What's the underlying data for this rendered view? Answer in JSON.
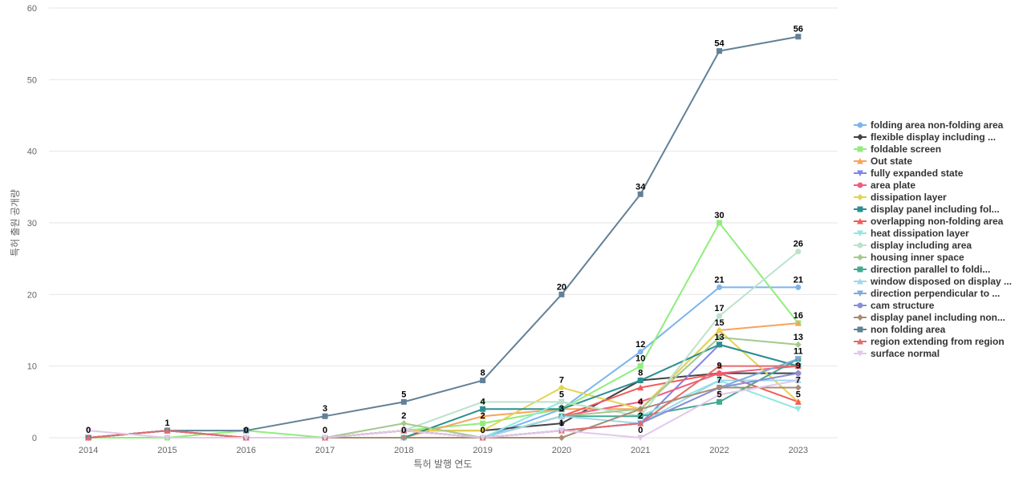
{
  "chart_data": {
    "type": "line",
    "title": "",
    "xlabel": "특허 발행 연도",
    "ylabel": "특허 출원 공개량",
    "x": [
      "2014",
      "2015",
      "2016",
      "2017",
      "2018",
      "2019",
      "2020",
      "2021",
      "2022",
      "2023"
    ],
    "y_ticks": [
      "0",
      "10",
      "20",
      "30",
      "40",
      "50",
      "60"
    ],
    "ylim": [
      0,
      60
    ],
    "grid": true,
    "legend_position": "right",
    "series": [
      {
        "name": "folding area non-folding area",
        "color": "#7cb5ec",
        "marker": "circle",
        "values": [
          0,
          1,
          0,
          0,
          1,
          0,
          4,
          12,
          21,
          21
        ]
      },
      {
        "name": "flexible display including ...",
        "color": "#434348",
        "marker": "diamond",
        "values": [
          0,
          1,
          0,
          0,
          1,
          1,
          2,
          8,
          9,
          9
        ]
      },
      {
        "name": "foldable screen",
        "color": "#90ed7d",
        "marker": "square",
        "values": [
          0,
          0,
          1,
          0,
          1,
          2,
          4,
          10,
          30,
          16
        ]
      },
      {
        "name": "Out state",
        "color": "#f7a35c",
        "marker": "triangle",
        "values": [
          0,
          1,
          0,
          0,
          0,
          3,
          4,
          4,
          15,
          16
        ]
      },
      {
        "name": "fully expanded state",
        "color": "#8085e9",
        "marker": "triangle-down",
        "values": [
          0,
          1,
          0,
          0,
          1,
          0,
          1,
          2,
          13,
          10
        ]
      },
      {
        "name": "area plate",
        "color": "#f15c80",
        "marker": "circle",
        "values": [
          0,
          1,
          0,
          0,
          1,
          0,
          3,
          5,
          9,
          10
        ]
      },
      {
        "name": "dissipation layer",
        "color": "#e4d354",
        "marker": "diamond",
        "values": [
          0,
          1,
          0,
          0,
          1,
          1,
          7,
          4,
          15,
          5
        ]
      },
      {
        "name": "display panel including fol...",
        "color": "#2b908f",
        "marker": "square",
        "values": [
          0,
          1,
          0,
          0,
          0,
          4,
          4,
          8,
          13,
          10
        ]
      },
      {
        "name": "overlapping non-folding area",
        "color": "#f45b5b",
        "marker": "triangle",
        "values": [
          0,
          1,
          0,
          0,
          1,
          0,
          3,
          7,
          9,
          5
        ]
      },
      {
        "name": "heat dissipation layer",
        "color": "#91e8e1",
        "marker": "triangle-down",
        "values": [
          0,
          1,
          0,
          0,
          0,
          0,
          5,
          3,
          8,
          4
        ]
      },
      {
        "name": "display including area",
        "color": "#bbe2cc",
        "marker": "circle",
        "values": [
          0,
          1,
          0,
          0,
          1,
          5,
          5,
          3,
          17,
          26
        ]
      },
      {
        "name": "housing inner space",
        "color": "#a4c98c",
        "marker": "diamond",
        "values": [
          0,
          1,
          0,
          0,
          2,
          0,
          3,
          4,
          14,
          13
        ]
      },
      {
        "name": "direction parallel to foldi...",
        "color": "#45a891",
        "marker": "square",
        "values": [
          0,
          1,
          0,
          0,
          0,
          0,
          3,
          3,
          5,
          11
        ]
      },
      {
        "name": "window disposed on display ...",
        "color": "#a0d8ec",
        "marker": "triangle",
        "values": [
          0,
          1,
          0,
          0,
          0,
          0,
          3,
          2,
          8,
          8
        ]
      },
      {
        "name": "direction perpendicular to ...",
        "color": "#7eaadd",
        "marker": "triangle-down",
        "values": [
          0,
          1,
          0,
          0,
          0,
          0,
          1,
          2,
          7,
          11
        ]
      },
      {
        "name": "cam structure",
        "color": "#8a8fd6",
        "marker": "circle",
        "values": [
          0,
          1,
          0,
          0,
          1,
          0,
          1,
          2,
          7,
          9
        ]
      },
      {
        "name": "display panel including non...",
        "color": "#a98c74",
        "marker": "diamond",
        "values": [
          0,
          1,
          0,
          0,
          0,
          0,
          0,
          4,
          7,
          7
        ]
      },
      {
        "name": "non folding area",
        "color": "#628197",
        "marker": "square",
        "values": [
          0,
          1,
          1,
          3,
          5,
          8,
          20,
          34,
          54,
          56
        ]
      },
      {
        "name": "region extending from region",
        "color": "#e36b6b",
        "marker": "triangle",
        "values": [
          0,
          1,
          0,
          0,
          1,
          0,
          1,
          2,
          10,
          10
        ]
      },
      {
        "name": "surface normal",
        "color": "#e2c8ea",
        "marker": "triangle-down",
        "values": [
          1,
          0,
          0,
          0,
          1,
          0,
          1,
          0,
          6,
          8
        ]
      }
    ],
    "data_labels": [
      {
        "x": "2014",
        "text": "0"
      },
      {
        "x": "2015",
        "text": "1"
      },
      {
        "x": "2016",
        "text": "0"
      },
      {
        "x": "2017",
        "text": "3"
      },
      {
        "x": "2017",
        "text": "0"
      },
      {
        "x": "2018",
        "text": "5"
      },
      {
        "x": "2018",
        "text": "2"
      },
      {
        "x": "2018",
        "text": "0"
      },
      {
        "x": "2019",
        "text": "8"
      },
      {
        "x": "2019",
        "text": "4"
      },
      {
        "x": "2019",
        "text": "2"
      },
      {
        "x": "2019",
        "text": "0"
      },
      {
        "x": "2020",
        "text": "20"
      },
      {
        "x": "2020",
        "text": "7"
      },
      {
        "x": "2020",
        "text": "5"
      },
      {
        "x": "2020",
        "text": "3"
      },
      {
        "x": "2020",
        "text": "1"
      },
      {
        "x": "2021",
        "text": "34"
      },
      {
        "x": "2021",
        "text": "12"
      },
      {
        "x": "2021",
        "text": "10"
      },
      {
        "x": "2021",
        "text": "8"
      },
      {
        "x": "2021",
        "text": "4"
      },
      {
        "x": "2021",
        "text": "2"
      },
      {
        "x": "2021",
        "text": "0"
      },
      {
        "x": "2022",
        "text": "54"
      },
      {
        "x": "2022",
        "text": "30"
      },
      {
        "x": "2022",
        "text": "21"
      },
      {
        "x": "2022",
        "text": "17"
      },
      {
        "x": "2022",
        "text": "15"
      },
      {
        "x": "2022",
        "text": "13"
      },
      {
        "x": "2022",
        "text": "9"
      },
      {
        "x": "2022",
        "text": "7"
      },
      {
        "x": "2022",
        "text": "5"
      },
      {
        "x": "2023",
        "text": "56"
      },
      {
        "x": "2023",
        "text": "26"
      },
      {
        "x": "2023",
        "text": "21"
      },
      {
        "x": "2023",
        "text": "16"
      },
      {
        "x": "2023",
        "text": "13"
      },
      {
        "x": "2023",
        "text": "11"
      },
      {
        "x": "2023",
        "text": "9"
      },
      {
        "x": "2023",
        "text": "7"
      },
      {
        "x": "2023",
        "text": "5"
      }
    ]
  }
}
